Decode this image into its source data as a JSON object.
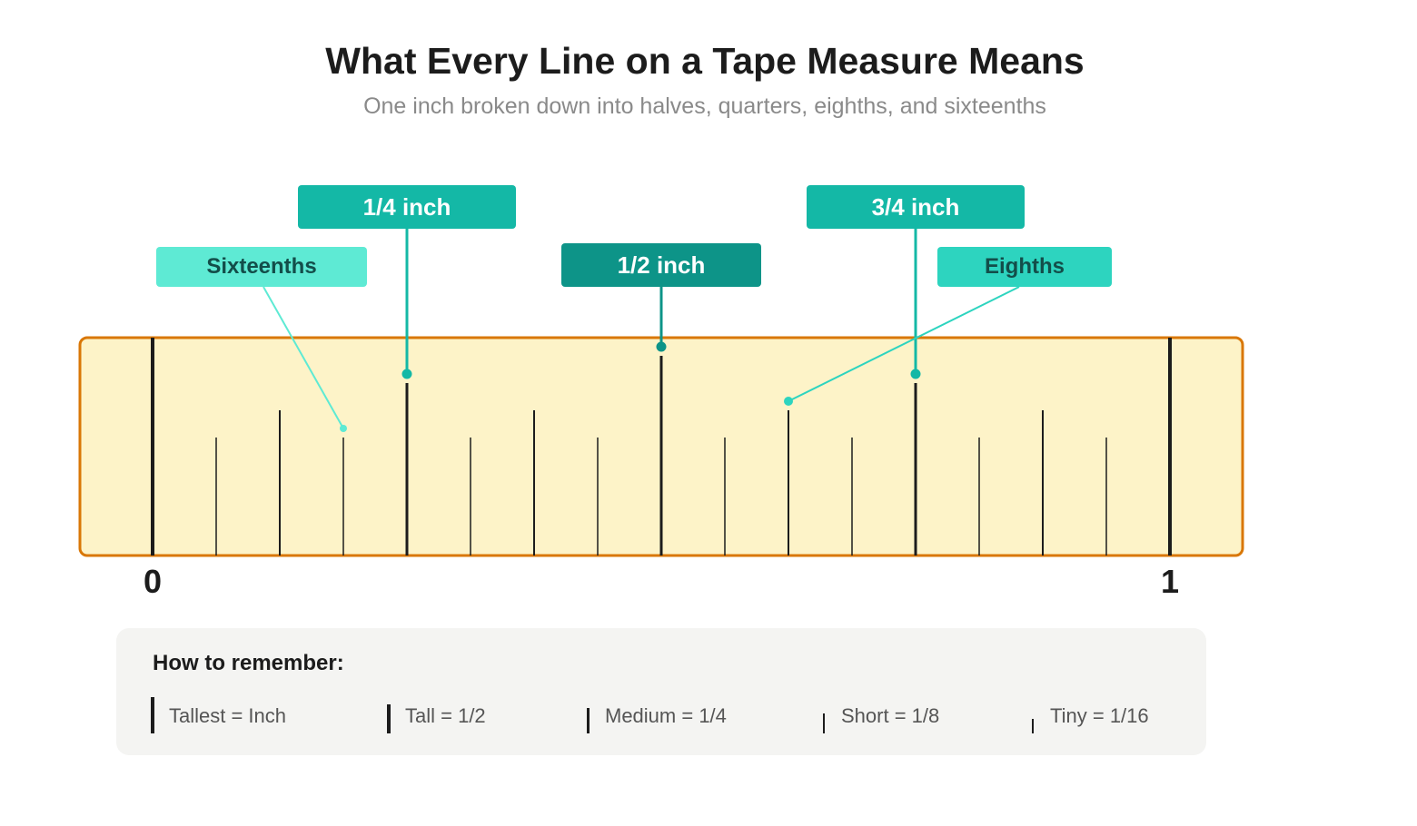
{
  "title": "What Every Line on a Tape Measure Means",
  "subtitle": "One inch broken down into halves, quarters, eighths, and sixteenths",
  "ruler": {
    "start_label": "0",
    "end_label": "1",
    "divisions": 16,
    "colors": {
      "fill": "#fdf3c8",
      "border": "#d97706",
      "ticks": "#1c1c1c"
    }
  },
  "callouts": {
    "quarter": {
      "label": "1/4 inch",
      "position": 0.25,
      "color": "#14b8a6"
    },
    "half": {
      "label": "1/2 inch",
      "position": 0.5,
      "color": "#0d9488"
    },
    "three_quarter": {
      "label": "3/4 inch",
      "position": 0.75,
      "color": "#14b8a6"
    },
    "sixteenths": {
      "label": "Sixteenths",
      "position": 0.1875,
      "color": "#5eead4"
    },
    "eighths": {
      "label": "Eighths",
      "position": 0.625,
      "color": "#2dd4bf"
    }
  },
  "legend": {
    "title": "How to remember:",
    "items": [
      {
        "label": "Tallest = Inch",
        "mark": "inch"
      },
      {
        "label": "Tall = 1/2",
        "mark": "half"
      },
      {
        "label": "Medium = 1/4",
        "mark": "quarter"
      },
      {
        "label": "Short = 1/8",
        "mark": "eighth"
      },
      {
        "label": "Tiny = 1/16",
        "mark": "sixteenth"
      }
    ]
  }
}
